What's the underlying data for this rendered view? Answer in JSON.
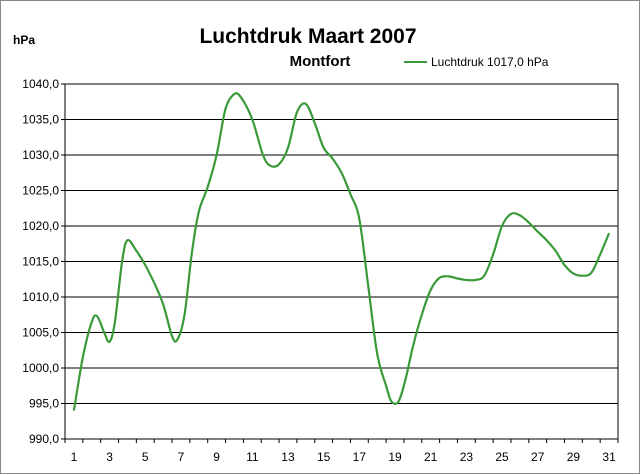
{
  "chart_data": {
    "type": "line",
    "title": "Luchtdruk Maart 2007",
    "subtitle": "Montfort",
    "ylabel": "hPa",
    "xlabel": "",
    "ylim": [
      990,
      1040
    ],
    "xlim": [
      1,
      31
    ],
    "grid": true,
    "legend_position": "top-right",
    "y_ticks": [
      "990,0",
      "995,0",
      "1000,0",
      "1005,0",
      "1010,0",
      "1015,0",
      "1020,0",
      "1025,0",
      "1030,0",
      "1035,0",
      "1040,0"
    ],
    "x_ticks": [
      "1",
      "3",
      "5",
      "7",
      "9",
      "11",
      "13",
      "15",
      "17",
      "19",
      "21",
      "23",
      "25",
      "27",
      "29",
      "31"
    ],
    "series": [
      {
        "name": "Luchtdruk 1017,0 hPa",
        "color": "#3a9a3a",
        "points": [
          [
            1,
            994.0
          ],
          [
            1.5,
            1001.5
          ],
          [
            2,
            1006.5
          ],
          [
            2.3,
            1007.3
          ],
          [
            2.7,
            1005.0
          ],
          [
            3,
            1003.7
          ],
          [
            3.3,
            1006.5
          ],
          [
            3.7,
            1015.0
          ],
          [
            4,
            1018.0
          ],
          [
            4.5,
            1016.5
          ],
          [
            5,
            1014.5
          ],
          [
            5.5,
            1012.0
          ],
          [
            6,
            1009.0
          ],
          [
            6.5,
            1004.5
          ],
          [
            6.8,
            1004.0
          ],
          [
            7.2,
            1007.5
          ],
          [
            7.6,
            1016.0
          ],
          [
            8,
            1022.0
          ],
          [
            8.5,
            1025.5
          ],
          [
            9,
            1030.0
          ],
          [
            9.5,
            1036.5
          ],
          [
            10,
            1038.6
          ],
          [
            10.4,
            1038.0
          ],
          [
            11,
            1035.0
          ],
          [
            11.6,
            1030.0
          ],
          [
            12,
            1028.5
          ],
          [
            12.5,
            1028.7
          ],
          [
            13,
            1031.0
          ],
          [
            13.5,
            1036.0
          ],
          [
            14,
            1037.2
          ],
          [
            14.5,
            1034.5
          ],
          [
            15,
            1031.0
          ],
          [
            15.5,
            1029.5
          ],
          [
            16,
            1027.5
          ],
          [
            16.5,
            1024.5
          ],
          [
            17,
            1021.0
          ],
          [
            17.5,
            1011.5
          ],
          [
            18,
            1002.0
          ],
          [
            18.5,
            997.5
          ],
          [
            18.8,
            995.3
          ],
          [
            19.2,
            995.3
          ],
          [
            19.6,
            998.5
          ],
          [
            20,
            1003.0
          ],
          [
            20.5,
            1007.5
          ],
          [
            21,
            1011.0
          ],
          [
            21.5,
            1012.7
          ],
          [
            22,
            1012.9
          ],
          [
            22.5,
            1012.6
          ],
          [
            23,
            1012.4
          ],
          [
            23.5,
            1012.4
          ],
          [
            24,
            1013.0
          ],
          [
            24.5,
            1016.0
          ],
          [
            25,
            1020.0
          ],
          [
            25.5,
            1021.7
          ],
          [
            26,
            1021.5
          ],
          [
            26.5,
            1020.5
          ],
          [
            27,
            1019.2
          ],
          [
            27.5,
            1018.0
          ],
          [
            28,
            1016.5
          ],
          [
            28.5,
            1014.5
          ],
          [
            29,
            1013.3
          ],
          [
            29.5,
            1013.0
          ],
          [
            30,
            1013.4
          ],
          [
            30.5,
            1016.0
          ],
          [
            31,
            1019.0
          ]
        ]
      }
    ]
  }
}
